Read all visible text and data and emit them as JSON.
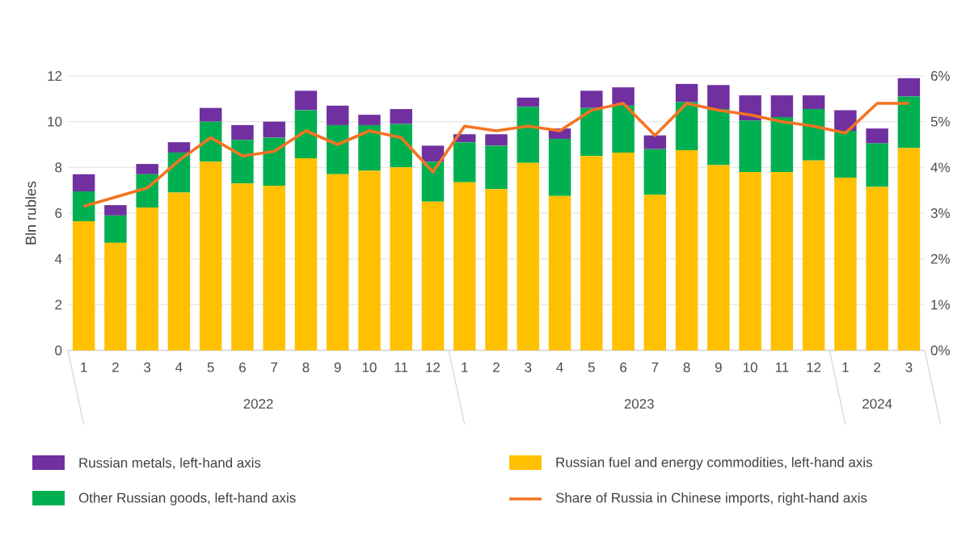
{
  "chart_data": {
    "type": "bar",
    "stacked": true,
    "ylabel": "Bln rubles",
    "categories": [
      "1",
      "2",
      "3",
      "4",
      "5",
      "6",
      "7",
      "8",
      "9",
      "10",
      "11",
      "12",
      "1",
      "2",
      "3",
      "4",
      "5",
      "6",
      "7",
      "8",
      "9",
      "10",
      "11",
      "12",
      "1",
      "2",
      "3"
    ],
    "annotations": [
      "2022",
      "2023",
      "2024"
    ],
    "series": [
      {
        "name": "Russian fuel and energy commodities, left-hand axis",
        "color": "#ffc000",
        "values": [
          5.65,
          4.7,
          6.25,
          6.9,
          8.25,
          7.3,
          7.2,
          8.4,
          7.7,
          7.85,
          8.0,
          6.5,
          7.35,
          7.05,
          8.2,
          6.75,
          8.5,
          8.65,
          6.8,
          8.75,
          8.1,
          7.8,
          7.8,
          8.3,
          7.55,
          7.15,
          8.85
        ]
      },
      {
        "name": "Other Russian goods, left-hand axis",
        "color": "#00b050",
        "values": [
          1.3,
          1.2,
          1.45,
          1.75,
          1.75,
          1.9,
          2.1,
          2.1,
          2.15,
          2.0,
          1.9,
          1.75,
          1.75,
          1.9,
          2.45,
          2.5,
          2.1,
          2.05,
          2.0,
          2.1,
          2.45,
          2.25,
          2.4,
          2.25,
          2.05,
          1.9,
          2.25
        ]
      },
      {
        "name": "Russian metals, left-hand axis",
        "color": "#7030a0",
        "values": [
          0.75,
          0.45,
          0.45,
          0.45,
          0.6,
          0.65,
          0.7,
          0.85,
          0.85,
          0.45,
          0.65,
          0.7,
          0.35,
          0.5,
          0.4,
          0.45,
          0.75,
          0.8,
          0.6,
          0.8,
          1.05,
          1.1,
          0.95,
          0.6,
          0.9,
          0.65,
          0.8
        ]
      },
      {
        "name": "Share of Russia in Chinese imports, right-hand axis",
        "type": "line",
        "axis": "y2",
        "color": "#f47322",
        "values": [
          3.15,
          3.35,
          3.55,
          4.15,
          4.65,
          4.25,
          4.35,
          4.8,
          4.5,
          4.8,
          4.65,
          3.9,
          4.9,
          4.8,
          4.9,
          4.8,
          5.25,
          5.4,
          4.7,
          5.4,
          5.25,
          5.15,
          5.0,
          4.9,
          4.75,
          5.4,
          5.4
        ]
      }
    ],
    "ylim": [
      0,
      12
    ],
    "yticks": [
      0,
      2,
      4,
      6,
      8,
      10,
      12
    ],
    "y2lim": [
      0,
      6
    ],
    "y2ticks": [
      {
        "value": 0,
        "label": "0%"
      },
      {
        "value": 1,
        "label": "1%"
      },
      {
        "value": 2,
        "label": "2%"
      },
      {
        "value": 3,
        "label": "3%"
      },
      {
        "value": 4,
        "label": "4%"
      },
      {
        "value": 5,
        "label": "5%"
      },
      {
        "value": 6,
        "label": "6%"
      }
    ],
    "grid": "y",
    "legend": "bottom"
  }
}
